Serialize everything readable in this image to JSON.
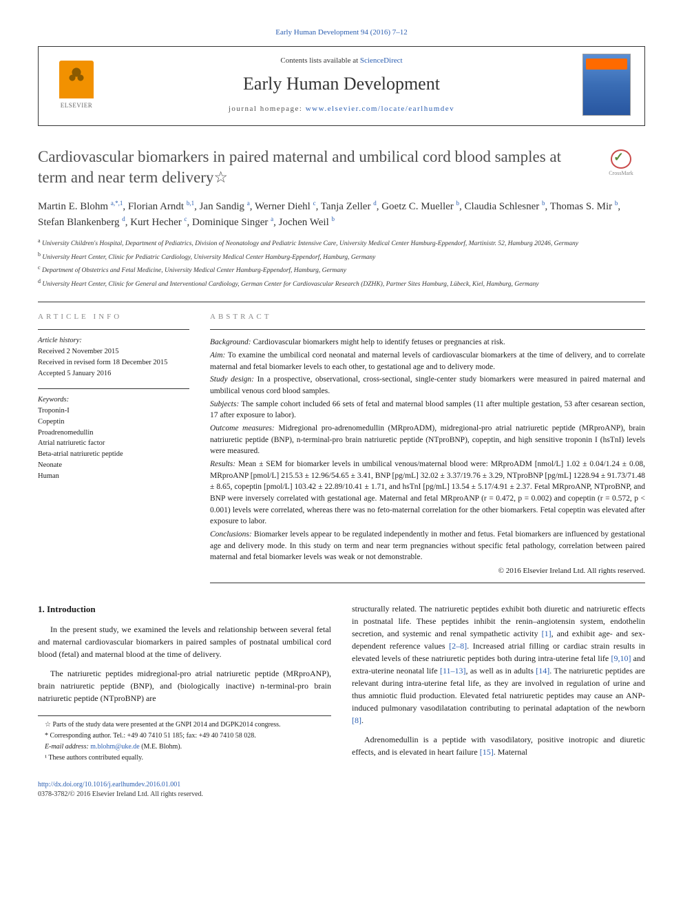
{
  "top_citation": "Early Human Development 94 (2016) 7–12",
  "header": {
    "contents_prefix": "Contents lists available at ",
    "contents_link": "ScienceDirect",
    "journal": "Early Human Development",
    "homepage_prefix": "journal homepage: ",
    "homepage_url": "www.elsevier.com/locate/earlhumdev",
    "publisher": "ELSEVIER"
  },
  "crossmark": "CrossMark",
  "title": "Cardiovascular biomarkers in paired maternal and umbilical cord blood samples at term and near term delivery☆",
  "authors_html": "Martin E. Blohm <sup>a,*,1</sup>, Florian Arndt <sup>b,1</sup>, Jan Sandig <sup>a</sup>, Werner Diehl <sup>c</sup>, Tanja Zeller <sup>d</sup>, Goetz C. Mueller <sup>b</sup>, Claudia Schlesner <sup>b</sup>, Thomas S. Mir <sup>b</sup>, Stefan Blankenberg <sup>d</sup>, Kurt Hecher <sup>c</sup>, Dominique Singer <sup>a</sup>, Jochen Weil <sup>b</sup>",
  "affiliations": {
    "a": "University Children's Hospital, Department of Pediatrics, Division of Neonatology and Pediatric Intensive Care, University Medical Center Hamburg-Eppendorf, Martinistr. 52, Hamburg 20246, Germany",
    "b": "University Heart Center, Clinic for Pediatric Cardiology, University Medical Center Hamburg-Eppendorf, Hamburg, Germany",
    "c": "Department of Obstetrics and Fetal Medicine, University Medical Center Hamburg-Eppendorf, Hamburg, Germany",
    "d": "University Heart Center, Clinic for General and Interventional Cardiology, German Center for Cardiovascular Research (DZHK), Partner Sites Hamburg, Lübeck, Kiel, Hamburg, Germany"
  },
  "article_info": {
    "heading": "ARTICLE INFO",
    "history_label": "Article history:",
    "received": "Received 2 November 2015",
    "revised": "Received in revised form 18 December 2015",
    "accepted": "Accepted 5 January 2016",
    "keywords_label": "Keywords:",
    "keywords": [
      "Troponin-I",
      "Copeptin",
      "Proadrenomedullin",
      "Atrial natriuretic factor",
      "Beta-atrial natriuretic peptide",
      "Neonate",
      "Human"
    ]
  },
  "abstract": {
    "heading": "ABSTRACT",
    "background_l": "Background:",
    "background": " Cardiovascular biomarkers might help to identify fetuses or pregnancies at risk.",
    "aim_l": "Aim:",
    "aim": " To examine the umbilical cord neonatal and maternal levels of cardiovascular biomarkers at the time of delivery, and to correlate maternal and fetal biomarker levels to each other, to gestational age and to delivery mode.",
    "design_l": "Study design:",
    "design": " In a prospective, observational, cross-sectional, single-center study biomarkers were measured in paired maternal and umbilical venous cord blood samples.",
    "subjects_l": "Subjects:",
    "subjects": " The sample cohort included 66 sets of fetal and maternal blood samples (11 after multiple gestation, 53 after cesarean section, 17 after exposure to labor).",
    "outcome_l": "Outcome measures:",
    "outcome": " Midregional pro-adrenomedullin (MRproADM), midregional-pro atrial natriuretic peptide (MRproANP), brain natriuretic peptide (BNP), n-terminal-pro brain natriuretic peptide (NTproBNP), copeptin, and high sensitive troponin I (hsTnI) levels were measured.",
    "results_l": "Results:",
    "results": " Mean ± SEM for biomarker levels in umbilical venous/maternal blood were: MRproADM [nmol/L] 1.02 ± 0.04/1.24 ± 0.08, MRproANP [pmol/L] 215.53 ± 12.96/54.65 ± 3.41, BNP [pg/mL] 32.02 ± 3.37/19.76 ± 3.29, NTproBNP [pg/mL] 1228.94 ± 91.73/71.48 ± 8.65, copeptin [pmol/L] 103.42 ± 22.89/10.41 ± 1.71, and hsTnI [pg/mL] 13.54 ± 5.17/4.91 ± 2.37. Fetal MRproANP, NTproBNP, and BNP were inversely correlated with gestational age. Maternal and fetal MRproANP (r = 0.472, p = 0.002) and copeptin (r = 0.572, p < 0.001) levels were correlated, whereas there was no feto-maternal correlation for the other biomarkers. Fetal copeptin was elevated after exposure to labor.",
    "conclusions_l": "Conclusions:",
    "conclusions": " Biomarker levels appear to be regulated independently in mother and fetus. Fetal biomarkers are influenced by gestational age and delivery mode. In this study on term and near term pregnancies without specific fetal pathology, correlation between paired maternal and fetal biomarker levels was weak or not demonstrable.",
    "copyright": "© 2016 Elsevier Ireland Ltd. All rights reserved."
  },
  "body": {
    "intro_heading": "1. Introduction",
    "p1": "In the present study, we examined the levels and relationship between several fetal and maternal cardiovascular biomarkers in paired samples of postnatal umbilical cord blood (fetal) and maternal blood at the time of delivery.",
    "p2": "The natriuretic peptides midregional-pro atrial natriuretic peptide (MRproANP), brain natriuretic peptide (BNP), and (biologically inactive) n-terminal-pro brain natriuretic peptide (NTproBNP) are",
    "p3a": "structurally related. The natriuretic peptides exhibit both diuretic and natriuretic effects in postnatal life. These peptides inhibit the renin–angiotensin system, endothelin secretion, and systemic and renal sympathetic activity ",
    "ref1": "[1]",
    "p3b": ", and exhibit age- and sex-dependent reference values ",
    "ref2": "[2–8]",
    "p3c": ". Increased atrial filling or cardiac strain results in elevated levels of these natriuretic peptides both during intra-uterine fetal life ",
    "ref3": "[9,10]",
    "p3d": " and extra-uterine neonatal life ",
    "ref4": "[11–13]",
    "p3e": ", as well as in adults ",
    "ref5": "[14]",
    "p3f": ". The natriuretic peptides are relevant during intra-uterine fetal life, as they are involved in regulation of urine and thus amniotic fluid production. Elevated fetal natriuretic peptides may cause an ANP-induced pulmonary vasodilatation contributing to perinatal adaptation of the newborn ",
    "ref6": "[8]",
    "p3g": ".",
    "p4a": "Adrenomedullin is a peptide with vasodilatory, positive inotropic and diuretic effects, and is elevated in heart failure ",
    "ref7": "[15]",
    "p4b": ". Maternal"
  },
  "footnotes": {
    "star": "☆ Parts of the study data were presented at the GNPI 2014 and DGPK2014 congress.",
    "corr": "* Corresponding author. Tel.: +49 40 7410 51 185; fax: +49 40 7410 58 028.",
    "email_l": "E-mail address: ",
    "email": "m.blohm@uke.de",
    "email_who": " (M.E. Blohm).",
    "equal": "¹ These authors contributed equally."
  },
  "footer": {
    "doi": "http://dx.doi.org/10.1016/j.earlhumdev.2016.01.001",
    "issn": "0378-3782/© 2016 Elsevier Ireland Ltd. All rights reserved."
  },
  "colors": {
    "link": "#2a5db0",
    "text": "#1a1a1a",
    "heading_gray": "#888888",
    "elsevier_orange": "#f29100",
    "cover_blue": "#3a6db5"
  }
}
